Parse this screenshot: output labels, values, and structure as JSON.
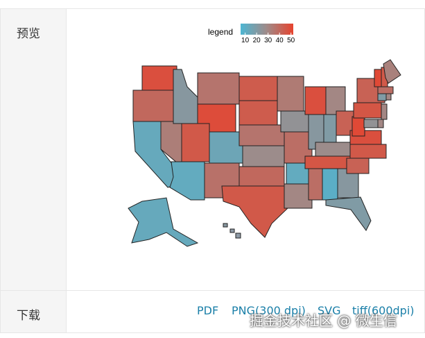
{
  "row_labels": {
    "preview": "预览",
    "download": "下载"
  },
  "map": {
    "legend": {
      "title": "legend",
      "ticks": [
        10,
        20,
        30,
        40,
        50
      ],
      "lim": [
        6,
        52
      ],
      "colors": [
        "#4db6d3",
        "#a08a88",
        "#e6432e"
      ]
    },
    "values": [
      48,
      40,
      13,
      33,
      22,
      36,
      49,
      45,
      15,
      12,
      37,
      44,
      44,
      36,
      28,
      40,
      45,
      34,
      25,
      38,
      12,
      30,
      48,
      22,
      30,
      20,
      42,
      28,
      46,
      38,
      10,
      22,
      20,
      45,
      42,
      48,
      50,
      46,
      42,
      50,
      45,
      32,
      38,
      20,
      30,
      30,
      30,
      25,
      13,
      22
    ]
  },
  "downloads": [
    "PDF",
    "PNG(300 dpi)",
    "SVG",
    "tiff(600dpi)"
  ],
  "watermark": "掘金技术社区 @ 微生信"
}
